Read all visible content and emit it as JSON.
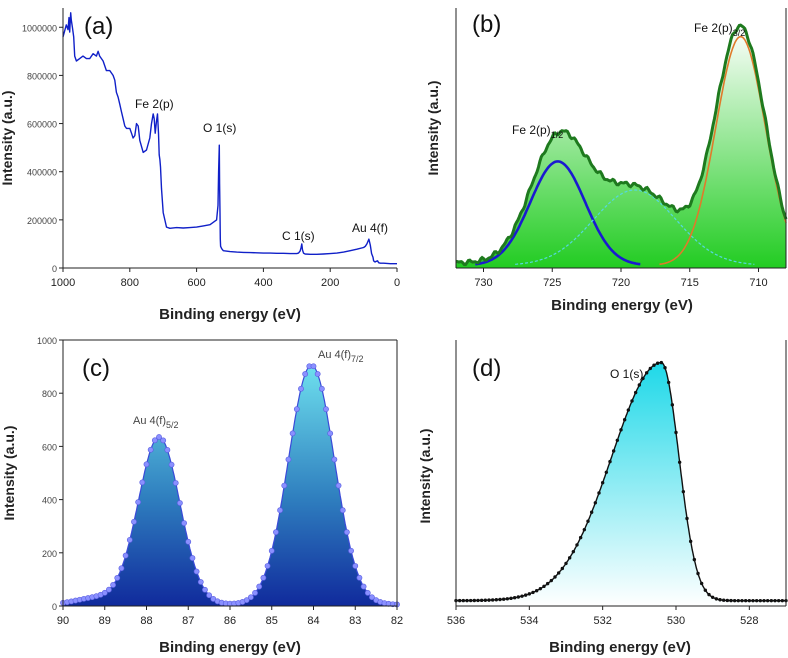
{
  "colors": {
    "axis": "#222222",
    "survey_line": "#1020c8",
    "envelope_b": "#1e7a1e",
    "fill_b": "#22cc22",
    "peak_blue": "#1a1ad0",
    "peak_cyan": "#55d8e0",
    "peak_orange": "#e07a2a",
    "fill_c_top": "#6ee0ee",
    "fill_c_bottom": "#102a9c",
    "marker_c": "#8a90ff",
    "fill_d_top": "#1ed8e8",
    "line_d": "#111111"
  },
  "chart_data": [
    {
      "id": "a",
      "type": "line",
      "panel_label": "(a)",
      "xlabel": "Binding energy (eV)",
      "ylabel": "Intensity (a.u.)",
      "xlim": [
        1000,
        0
      ],
      "ylim": [
        0,
        1080000
      ],
      "xticks": [
        1000,
        800,
        600,
        400,
        200,
        0
      ],
      "yticks": [
        0,
        200000,
        400000,
        600000,
        800000,
        1000000
      ],
      "series": [
        {
          "name": "Survey",
          "x": [
            1000,
            990,
            985,
            982,
            980,
            977,
            975,
            972,
            968,
            965,
            960,
            950,
            940,
            930,
            920,
            910,
            900,
            895,
            890,
            880,
            870,
            860,
            850,
            845,
            840,
            835,
            830,
            825,
            820,
            815,
            810,
            800,
            795,
            790,
            785,
            780,
            775,
            770,
            760,
            750,
            740,
            735,
            730,
            727,
            724,
            720,
            717,
            714,
            712,
            710,
            708,
            705,
            700,
            690,
            680,
            660,
            640,
            620,
            600,
            580,
            560,
            545,
            540,
            536,
            534,
            532,
            531,
            530,
            529,
            528,
            525,
            520,
            500,
            480,
            460,
            440,
            420,
            400,
            380,
            360,
            340,
            320,
            300,
            295,
            290,
            287,
            285,
            283,
            280,
            275,
            260,
            240,
            220,
            200,
            180,
            160,
            140,
            120,
            100,
            95,
            90,
            87,
            84,
            80,
            76,
            72,
            70,
            66,
            62,
            58,
            55,
            50,
            40,
            30,
            20,
            10,
            0
          ],
          "y": [
            960000,
            1010000,
            990000,
            1040000,
            980000,
            1060000,
            1030000,
            1000000,
            960000,
            880000,
            860000,
            870000,
            880000,
            870000,
            870000,
            890000,
            880000,
            900000,
            880000,
            860000,
            820000,
            820000,
            800000,
            780000,
            730000,
            710000,
            680000,
            650000,
            620000,
            590000,
            580000,
            580000,
            560000,
            540000,
            550000,
            600000,
            590000,
            530000,
            480000,
            490000,
            540000,
            600000,
            640000,
            620000,
            560000,
            610000,
            640000,
            560000,
            470000,
            450000,
            420000,
            330000,
            230000,
            170000,
            165000,
            168000,
            166000,
            168000,
            170000,
            175000,
            180000,
            195000,
            200000,
            260000,
            400000,
            510000,
            350000,
            230000,
            120000,
            90000,
            80000,
            72000,
            68000,
            66000,
            65000,
            64000,
            63000,
            62000,
            62000,
            61000,
            61000,
            60000,
            60000,
            62000,
            70000,
            85000,
            100000,
            75000,
            62000,
            58000,
            57000,
            57000,
            58000,
            60000,
            62000,
            66000,
            72000,
            78000,
            85000,
            90000,
            100000,
            110000,
            120000,
            95000,
            60000,
            45000,
            30000,
            25000,
            28000,
            30000,
            22000,
            20000,
            20000,
            19000,
            18000,
            18000,
            18000
          ]
        }
      ],
      "annotations": [
        "Fe 2(p)",
        "O 1(s)",
        "C 1(s)",
        "Au 4(f)"
      ]
    },
    {
      "id": "b",
      "type": "line",
      "panel_label": "(b)",
      "xlabel": "Binding energy (eV)",
      "ylabel": "Intensity (a.u.)",
      "xlim": [
        732,
        708
      ],
      "ylim": [
        0,
        1
      ],
      "xticks": [
        730,
        725,
        720,
        715,
        710
      ],
      "series": [
        {
          "name": "Envelope",
          "peaks": [
            {
              "center": 724.6,
              "amplitude": 0.45,
              "sigma": 2.0
            },
            {
              "center": 719.0,
              "amplitude": 0.29,
              "sigma": 3.0
            },
            {
              "center": 711.3,
              "amplitude": 0.9,
              "sigma": 1.8
            }
          ]
        },
        {
          "name": "Fe 2p1/2 fit",
          "center": 724.6,
          "amplitude": 0.4,
          "sigma": 2.0
        },
        {
          "name": "Satellite fit",
          "center": 719.0,
          "amplitude": 0.29,
          "sigma": 3.0
        },
        {
          "name": "Fe 2p3/2 fit",
          "center": 711.3,
          "amplitude": 0.88,
          "sigma": 1.8
        }
      ],
      "annotations": [
        {
          "text": "Fe 2(p)",
          "sub": "1/2"
        },
        {
          "text": "Fe 2(p)",
          "sub": "3/2"
        }
      ]
    },
    {
      "id": "c",
      "type": "line",
      "panel_label": "(c)",
      "xlabel": "Binding energy (eV)",
      "ylabel": "Intensity (a.u.)",
      "xlim": [
        90,
        82
      ],
      "ylim": [
        0,
        1000
      ],
      "xticks": [
        90,
        89,
        88,
        87,
        86,
        85,
        84,
        83,
        82
      ],
      "yticks": [
        0,
        200,
        400,
        600,
        800,
        1000
      ],
      "series": [
        {
          "name": "Au 4f spectrum",
          "baseline": 5,
          "peaks": [
            {
              "center": 87.7,
              "amplitude": 630,
              "sigma": 0.5
            },
            {
              "center": 84.05,
              "amplitude": 900,
              "sigma": 0.55
            }
          ]
        }
      ],
      "annotations": [
        {
          "text": "Au 4(f)",
          "sub": "5/2"
        },
        {
          "text": "Au 4(f)",
          "sub": "7/2"
        }
      ]
    },
    {
      "id": "d",
      "type": "line",
      "panel_label": "(d)",
      "xlabel": "Binding energy (eV)",
      "ylabel": "Intensity (a.u.)",
      "xlim": [
        536,
        527
      ],
      "ylim": [
        0,
        1
      ],
      "xticks": [
        536,
        534,
        532,
        530,
        528
      ],
      "series": [
        {
          "name": "O 1s spectrum",
          "center": 530.4,
          "amplitude": 0.915,
          "sigma_high_be": 1.35,
          "sigma_low_be": 0.48
        }
      ],
      "annotations": [
        "O 1(s)"
      ]
    }
  ]
}
